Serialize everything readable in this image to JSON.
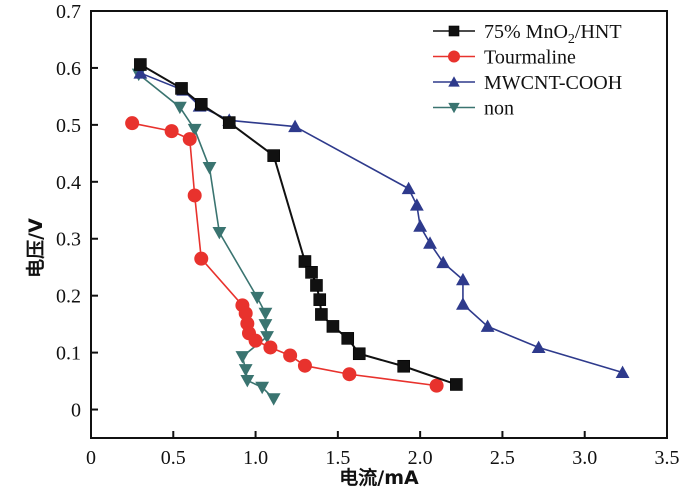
{
  "chart_data": {
    "type": "line",
    "title": "",
    "xlabel": "电流/mA",
    "ylabel": "电压/V",
    "xlim": [
      0,
      3.5
    ],
    "ylim": [
      -0.05,
      0.7
    ],
    "xticks": [
      0,
      0.5,
      1.0,
      1.5,
      2.0,
      2.5,
      3.0,
      3.5
    ],
    "xtick_labels": [
      "0",
      "0.5",
      "1.0",
      "1.5",
      "2.0",
      "2.5",
      "3.0",
      "3.5"
    ],
    "yticks": [
      0,
      0.1,
      0.2,
      0.3,
      0.4,
      0.5,
      0.6,
      0.7
    ],
    "ytick_labels": [
      "0",
      "0.1",
      "0.2",
      "0.3",
      "0.4",
      "0.5",
      "0.6",
      "0.7"
    ],
    "grid": false,
    "legend_position": "top-right",
    "series": [
      {
        "name": "75% MnO2/HNT",
        "legend_main": "75% MnO",
        "legend_sub": "2",
        "legend_tail": "/HNT",
        "marker": "square",
        "color": "#111111",
        "x": [
          0.3,
          0.55,
          0.67,
          0.84,
          1.11,
          1.3,
          1.34,
          1.37,
          1.39,
          1.4,
          1.47,
          1.56,
          1.63,
          1.9,
          2.22
        ],
        "y": [
          0.606,
          0.564,
          0.536,
          0.504,
          0.446,
          0.26,
          0.241,
          0.218,
          0.193,
          0.167,
          0.146,
          0.125,
          0.098,
          0.076,
          0.044
        ]
      },
      {
        "name": "Tourmaline",
        "legend_main": "Tourmaline",
        "legend_sub": "",
        "legend_tail": "",
        "marker": "circle",
        "color": "#e8322d",
        "x": [
          0.25,
          0.49,
          0.6,
          0.63,
          0.67,
          0.92,
          0.94,
          0.95,
          0.96,
          1.0,
          1.09,
          1.21,
          1.3,
          1.57,
          2.1
        ],
        "y": [
          0.503,
          0.489,
          0.475,
          0.376,
          0.265,
          0.183,
          0.169,
          0.151,
          0.134,
          0.121,
          0.109,
          0.095,
          0.077,
          0.062,
          0.042
        ]
      },
      {
        "name": "MWCNT-COOH",
        "legend_main": "MWCNT-COOH",
        "legend_sub": "",
        "legend_tail": "",
        "marker": "triangle-up",
        "color": "#2e3a8c",
        "x": [
          0.3,
          0.56,
          0.66,
          0.84,
          1.24,
          1.93,
          1.98,
          2.0,
          2.06,
          2.14,
          2.26,
          2.26,
          2.41,
          2.72,
          3.23
        ],
        "y": [
          0.591,
          0.561,
          0.533,
          0.508,
          0.497,
          0.388,
          0.359,
          0.322,
          0.292,
          0.258,
          0.228,
          0.185,
          0.146,
          0.109,
          0.065
        ]
      },
      {
        "name": "non",
        "legend_main": "non",
        "legend_sub": "",
        "legend_tail": "",
        "marker": "triangle-down",
        "color": "#3a7470",
        "x": [
          0.29,
          0.54,
          0.63,
          0.72,
          0.78,
          1.01,
          1.06,
          1.06,
          1.07,
          0.92,
          0.94,
          0.95,
          1.04,
          1.11
        ],
        "y": [
          0.589,
          0.531,
          0.492,
          0.425,
          0.311,
          0.197,
          0.169,
          0.149,
          0.128,
          0.093,
          0.07,
          0.051,
          0.039,
          0.019
        ]
      }
    ]
  }
}
